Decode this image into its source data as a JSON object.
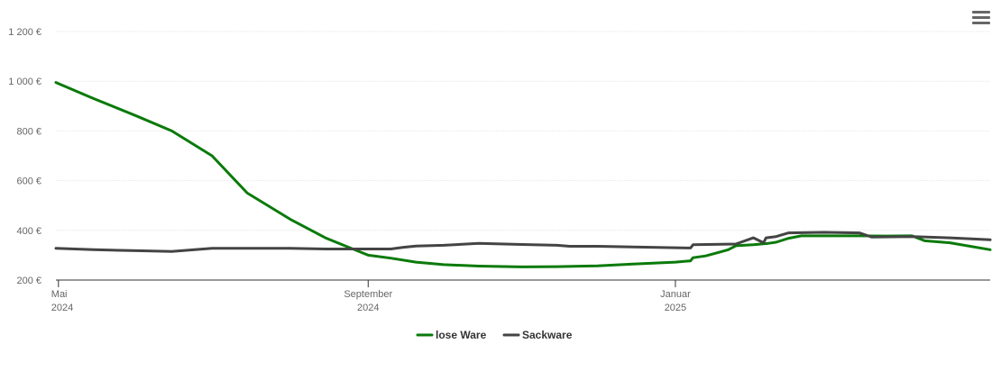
{
  "chart_data": {
    "type": "line",
    "title": "",
    "xlabel": "",
    "ylabel": "",
    "y_unit": "€",
    "ylim": [
      200,
      1200
    ],
    "yticks": [
      {
        "value": 200,
        "label": "200 €"
      },
      {
        "value": 400,
        "label": "400 €"
      },
      {
        "value": 600,
        "label": "600 €"
      },
      {
        "value": 800,
        "label": "800 €"
      },
      {
        "value": 1000,
        "label": "1 000 €"
      },
      {
        "value": 1200,
        "label": "1 200 €"
      }
    ],
    "xlim": [
      "2024-04-30",
      "2025-05-06"
    ],
    "xticks": [
      {
        "date": "2024-05-01",
        "line1": "Mai",
        "line2": "2024"
      },
      {
        "date": "2024-09-01",
        "line1": "September",
        "line2": "2024"
      },
      {
        "date": "2025-01-01",
        "line1": "Januar",
        "line2": "2025"
      }
    ],
    "grid": true,
    "legend_position": "bottom-center",
    "series": [
      {
        "name": "lose Ware",
        "color": "#0a7a0a",
        "points": [
          [
            "2024-04-30",
            995
          ],
          [
            "2024-05-15",
            930
          ],
          [
            "2024-06-01",
            860
          ],
          [
            "2024-06-15",
            800
          ],
          [
            "2024-07-01",
            700
          ],
          [
            "2024-07-15",
            550
          ],
          [
            "2024-08-01",
            445
          ],
          [
            "2024-08-15",
            370
          ],
          [
            "2024-09-01",
            300
          ],
          [
            "2024-09-10",
            288
          ],
          [
            "2024-09-20",
            272
          ],
          [
            "2024-10-01",
            262
          ],
          [
            "2024-10-15",
            256
          ],
          [
            "2024-11-01",
            253
          ],
          [
            "2024-11-15",
            254
          ],
          [
            "2024-12-01",
            257
          ],
          [
            "2024-12-15",
            264
          ],
          [
            "2025-01-01",
            272
          ],
          [
            "2025-01-07",
            277
          ],
          [
            "2025-01-08",
            290
          ],
          [
            "2025-01-13",
            297
          ],
          [
            "2025-01-18",
            311
          ],
          [
            "2025-01-22",
            322
          ],
          [
            "2025-01-25",
            338
          ],
          [
            "2025-02-01",
            342
          ],
          [
            "2025-02-07",
            348
          ],
          [
            "2025-02-10",
            352
          ],
          [
            "2025-02-15",
            368
          ],
          [
            "2025-02-20",
            378
          ],
          [
            "2025-03-15",
            378
          ],
          [
            "2025-03-25",
            377
          ],
          [
            "2025-04-05",
            378
          ],
          [
            "2025-04-10",
            358
          ],
          [
            "2025-04-20",
            350
          ],
          [
            "2025-05-06",
            322
          ]
        ]
      },
      {
        "name": "Sackware",
        "color": "#444444",
        "points": [
          [
            "2024-04-30",
            328
          ],
          [
            "2024-05-15",
            322
          ],
          [
            "2024-06-01",
            318
          ],
          [
            "2024-06-15",
            315
          ],
          [
            "2024-07-01",
            328
          ],
          [
            "2024-07-15",
            328
          ],
          [
            "2024-08-01",
            328
          ],
          [
            "2024-08-15",
            325
          ],
          [
            "2024-09-01",
            325
          ],
          [
            "2024-09-10",
            325
          ],
          [
            "2024-09-15",
            332
          ],
          [
            "2024-09-20",
            337
          ],
          [
            "2024-10-01",
            340
          ],
          [
            "2024-10-15",
            348
          ],
          [
            "2024-11-01",
            343
          ],
          [
            "2024-11-15",
            340
          ],
          [
            "2024-11-20",
            336
          ],
          [
            "2024-12-01",
            336
          ],
          [
            "2024-12-15",
            333
          ],
          [
            "2025-01-01",
            330
          ],
          [
            "2025-01-07",
            329
          ],
          [
            "2025-01-08",
            342
          ],
          [
            "2025-01-25",
            345
          ],
          [
            "2025-02-01",
            370
          ],
          [
            "2025-02-05",
            350
          ],
          [
            "2025-02-06",
            370
          ],
          [
            "2025-02-10",
            375
          ],
          [
            "2025-02-15",
            390
          ],
          [
            "2025-03-01",
            392
          ],
          [
            "2025-03-15",
            390
          ],
          [
            "2025-03-20",
            373
          ],
          [
            "2025-04-05",
            375
          ],
          [
            "2025-04-20",
            370
          ],
          [
            "2025-05-06",
            362
          ]
        ]
      }
    ]
  },
  "menu": {
    "icon": "hamburger-menu-icon"
  }
}
